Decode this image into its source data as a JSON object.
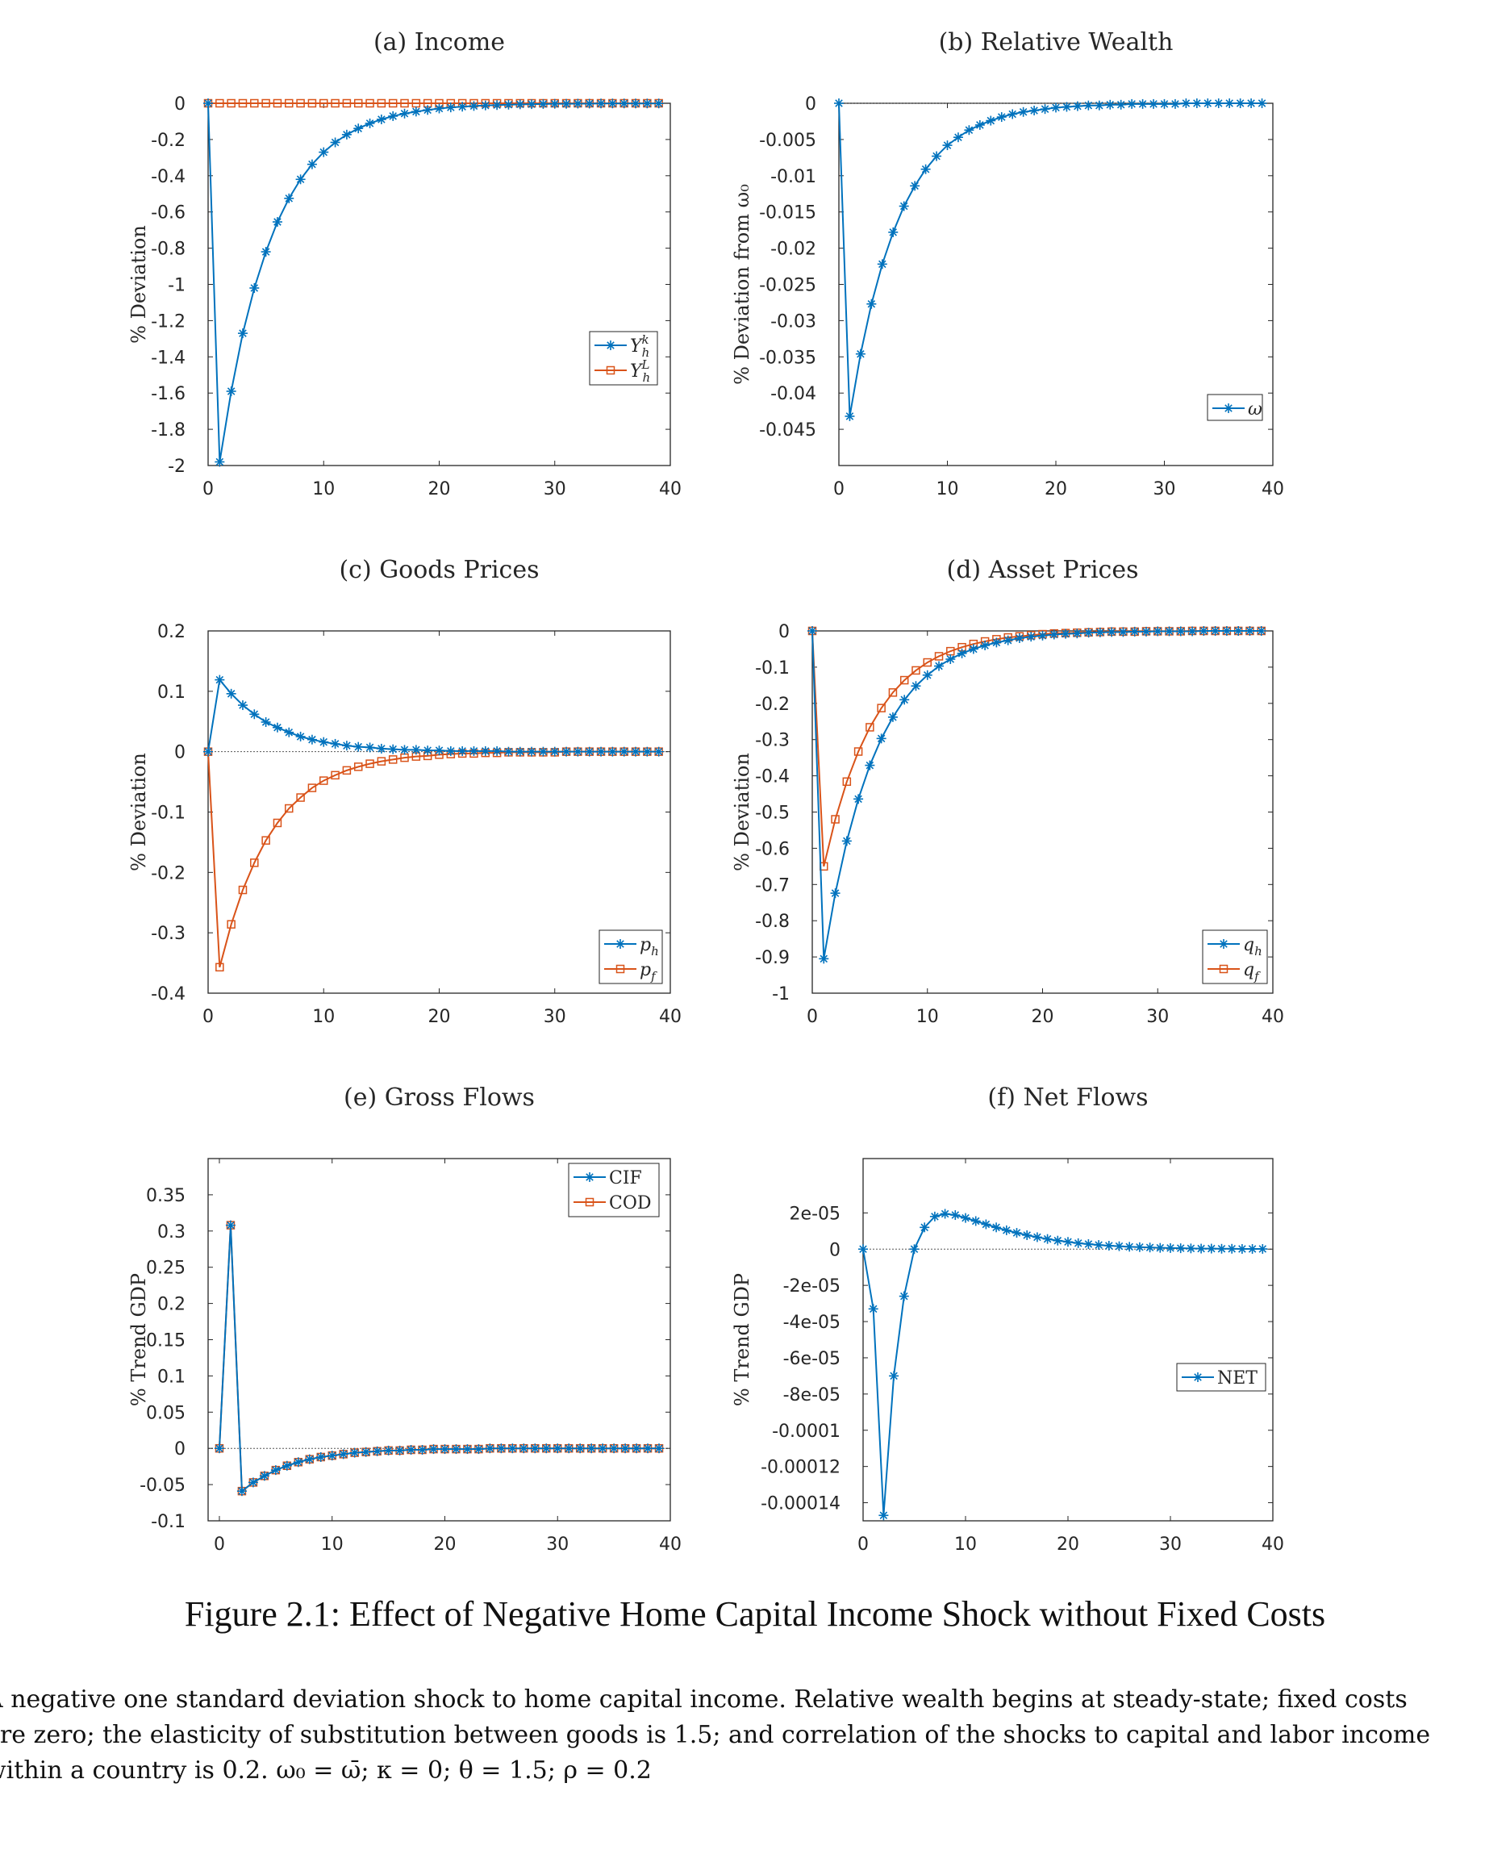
{
  "figure": {
    "caption": "Figure 2.1: Effect of Negative Home Capital Income Shock without Fixed Costs",
    "note": "A negative one standard deviation shock to home capital income. Relative wealth begins at steady-state; fixed costs\nare zero; the elasticity of substitution between goods is 1.5; and correlation of the shocks to capital and labor income\nwithin a country is 0.2. ω₀ = ω̄; κ = 0; θ = 1.5; ρ = 0.2"
  },
  "colors": {
    "blue": "#0072BD",
    "orange": "#D95319",
    "axis": "#262626"
  },
  "chart_data": [
    {
      "type": "line",
      "title": "(a) Income",
      "ylabel": "% Deviation",
      "xlim": [
        0,
        40
      ],
      "ylim": [
        -2,
        0
      ],
      "xticks": [
        0,
        10,
        20,
        30,
        40
      ],
      "yticks": [
        0,
        -0.2,
        -0.4,
        -0.6,
        -0.8,
        -1,
        -1.2,
        -1.4,
        -1.6,
        -1.8,
        -2
      ],
      "ytick_labels": [
        "0",
        "-0.2",
        "-0.4",
        "-0.6",
        "-0.8",
        "-1",
        "-1.2",
        "-1.4",
        "-1.6",
        "-1.8",
        "-2"
      ],
      "zero_line": false,
      "legend_position": "right, lower-middle",
      "series": [
        {
          "name": "Y_h^k",
          "marker": "star",
          "color": "#0072BD",
          "start": 0,
          "values": [
            0,
            -1.98,
            -1.59,
            -1.27,
            -1.02,
            -0.82,
            -0.655,
            -0.525,
            -0.42,
            -0.337,
            -0.27,
            -0.216,
            -0.173,
            -0.139,
            -0.111,
            -0.089,
            -0.071,
            -0.057,
            -0.046,
            -0.037,
            -0.029,
            -0.023,
            -0.019,
            -0.015,
            -0.012,
            -0.01,
            -0.008,
            -0.006,
            -0.005,
            -0.004,
            -0.003,
            -0.003,
            -0.002,
            -0.002,
            -0.001,
            -0.001,
            -0.001,
            -0.001,
            -0.001,
            -0.001
          ]
        },
        {
          "name": "Y_h^L",
          "marker": "square",
          "color": "#D95319",
          "start": 0,
          "values": [
            0,
            0,
            0,
            0,
            0,
            0,
            0,
            0,
            0,
            0,
            0,
            0,
            0,
            0,
            0,
            0,
            0,
            0,
            0,
            0,
            0,
            0,
            0,
            0,
            0,
            0,
            0,
            0,
            0,
            0,
            0,
            0,
            0,
            0,
            0,
            0,
            0,
            0,
            0,
            0
          ]
        }
      ]
    },
    {
      "type": "line",
      "title": "(b) Relative Wealth",
      "ylabel": "% Deviation from ω₀",
      "xlim": [
        0,
        40
      ],
      "ylim": [
        -0.05,
        0
      ],
      "xticks": [
        0,
        10,
        20,
        30,
        40
      ],
      "yticks": [
        0,
        -0.005,
        -0.01,
        -0.015,
        -0.02,
        -0.025,
        -0.03,
        -0.035,
        -0.04,
        -0.045
      ],
      "ytick_labels": [
        "0",
        "-0.005",
        "-0.01",
        "-0.015",
        "-0.02",
        "-0.025",
        "-0.03",
        "-0.035",
        "-0.04",
        "-0.045"
      ],
      "zero_line": true,
      "legend_position": "right, lower",
      "series": [
        {
          "name": "ω",
          "marker": "star",
          "color": "#0072BD",
          "start": 0,
          "values": [
            0,
            -0.0432,
            -0.0346,
            -0.0277,
            -0.0222,
            -0.0178,
            -0.0142,
            -0.0114,
            -0.0091,
            -0.0073,
            -0.0058,
            -0.0047,
            -0.0037,
            -0.003,
            -0.0024,
            -0.0019,
            -0.0015,
            -0.0012,
            -0.001,
            -0.0008,
            -0.0006,
            -0.0005,
            -0.0004,
            -0.0003,
            -0.0003,
            -0.0002,
            -0.0002,
            -0.0001,
            -0.0001,
            -0.0001,
            -0.0001,
            -0.0001,
            0,
            0,
            0,
            0,
            0,
            0,
            0,
            0
          ]
        }
      ]
    },
    {
      "type": "line",
      "title": "(c) Goods Prices",
      "ylabel": "% Deviation",
      "xlim": [
        0,
        40
      ],
      "ylim": [
        -0.4,
        0.2
      ],
      "xticks": [
        0,
        10,
        20,
        30,
        40
      ],
      "yticks": [
        0.2,
        0.1,
        0,
        -0.1,
        -0.2,
        -0.3,
        -0.4
      ],
      "ytick_labels": [
        "0.2",
        "0.1",
        "0",
        "-0.1",
        "-0.2",
        "-0.3",
        "-0.4"
      ],
      "zero_line": true,
      "legend_position": "bottom-right",
      "series": [
        {
          "name": "p_h",
          "marker": "star",
          "color": "#0072BD",
          "start": 0,
          "values": [
            0,
            0.119,
            0.096,
            0.077,
            0.062,
            0.049,
            0.04,
            0.032,
            0.025,
            0.02,
            0.016,
            0.013,
            0.01,
            0.008,
            0.007,
            0.005,
            0.004,
            0.003,
            0.003,
            0.002,
            0.002,
            0.001,
            0.001,
            0.001,
            0.001,
            0.001,
            0,
            0,
            0,
            0,
            0,
            0,
            0,
            0,
            0,
            0,
            0,
            0,
            0,
            0
          ]
        },
        {
          "name": "p_f",
          "marker": "square",
          "color": "#D95319",
          "start": 0,
          "values": [
            0,
            -0.357,
            -0.286,
            -0.229,
            -0.184,
            -0.147,
            -0.118,
            -0.094,
            -0.076,
            -0.06,
            -0.048,
            -0.039,
            -0.031,
            -0.025,
            -0.02,
            -0.016,
            -0.013,
            -0.01,
            -0.008,
            -0.007,
            -0.005,
            -0.004,
            -0.003,
            -0.003,
            -0.002,
            -0.002,
            -0.001,
            -0.001,
            -0.001,
            -0.001,
            -0.001,
            0,
            0,
            0,
            0,
            0,
            0,
            0,
            0,
            0
          ]
        }
      ]
    },
    {
      "type": "line",
      "title": "(d) Asset Prices",
      "ylabel": "% Deviation",
      "xlim": [
        0,
        40
      ],
      "ylim": [
        -1,
        0
      ],
      "xticks": [
        0,
        10,
        20,
        30,
        40
      ],
      "yticks": [
        0,
        -0.1,
        -0.2,
        -0.3,
        -0.4,
        -0.5,
        -0.6,
        -0.7,
        -0.8,
        -0.9,
        -1
      ],
      "ytick_labels": [
        "0",
        "-0.1",
        "-0.2",
        "-0.3",
        "-0.4",
        "-0.5",
        "-0.6",
        "-0.7",
        "-0.8",
        "-0.9",
        "-1"
      ],
      "zero_line": false,
      "legend_position": "bottom-right",
      "series": [
        {
          "name": "q_h",
          "marker": "star",
          "color": "#0072BD",
          "start": 0,
          "values": [
            0,
            -0.905,
            -0.724,
            -0.58,
            -0.464,
            -0.371,
            -0.297,
            -0.238,
            -0.19,
            -0.152,
            -0.122,
            -0.097,
            -0.078,
            -0.062,
            -0.05,
            -0.04,
            -0.032,
            -0.026,
            -0.02,
            -0.016,
            -0.013,
            -0.01,
            -0.008,
            -0.007,
            -0.005,
            -0.004,
            -0.003,
            -0.003,
            -0.002,
            -0.002,
            -0.001,
            -0.001,
            -0.001,
            -0.001,
            0,
            0,
            0,
            0,
            0,
            0
          ]
        },
        {
          "name": "q_f",
          "marker": "square",
          "color": "#D95319",
          "start": 0,
          "values": [
            0,
            -0.65,
            -0.52,
            -0.416,
            -0.333,
            -0.266,
            -0.213,
            -0.17,
            -0.136,
            -0.109,
            -0.087,
            -0.07,
            -0.056,
            -0.045,
            -0.036,
            -0.029,
            -0.023,
            -0.018,
            -0.015,
            -0.012,
            -0.009,
            -0.007,
            -0.006,
            -0.005,
            -0.004,
            -0.003,
            -0.002,
            -0.002,
            -0.002,
            -0.001,
            -0.001,
            -0.001,
            -0.001,
            0,
            0,
            0,
            0,
            0,
            0,
            0
          ]
        }
      ]
    },
    {
      "type": "line",
      "title": "(e) Gross Flows",
      "ylabel": "% Trend GDP",
      "xlim": [
        -1,
        40
      ],
      "ylim": [
        -0.1,
        0.4
      ],
      "xticks": [
        0,
        10,
        20,
        30,
        40
      ],
      "yticks": [
        0.35,
        0.3,
        0.25,
        0.2,
        0.15,
        0.1,
        0.05,
        0,
        -0.05,
        -0.1
      ],
      "ytick_labels": [
        "0.35",
        "0.3",
        "0.25",
        "0.2",
        "0.15",
        "0.1",
        "0.05",
        "0",
        "-0.05",
        "-0.1"
      ],
      "zero_line": true,
      "legend_position": "top-right",
      "series": [
        {
          "name": "CIF",
          "marker": "star",
          "color": "#0072BD",
          "start": 0,
          "values": [
            0,
            0.308,
            -0.059,
            -0.047,
            -0.038,
            -0.03,
            -0.024,
            -0.019,
            -0.015,
            -0.012,
            -0.01,
            -0.008,
            -0.006,
            -0.005,
            -0.004,
            -0.003,
            -0.003,
            -0.002,
            -0.002,
            -0.001,
            -0.001,
            -0.001,
            -0.001,
            -0.001,
            0,
            0,
            0,
            0,
            0,
            0,
            0,
            0,
            0,
            0,
            0,
            0,
            0,
            0,
            0,
            0
          ]
        },
        {
          "name": "COD",
          "marker": "square",
          "color": "#D95319",
          "start": 0,
          "values": [
            0,
            0.308,
            -0.059,
            -0.047,
            -0.038,
            -0.03,
            -0.024,
            -0.019,
            -0.015,
            -0.012,
            -0.01,
            -0.008,
            -0.006,
            -0.005,
            -0.004,
            -0.003,
            -0.003,
            -0.002,
            -0.002,
            -0.001,
            -0.001,
            -0.001,
            -0.001,
            -0.001,
            0,
            0,
            0,
            0,
            0,
            0,
            0,
            0,
            0,
            0,
            0,
            0,
            0,
            0,
            0,
            0
          ]
        }
      ]
    },
    {
      "type": "line",
      "title": "(f) Net Flows",
      "ylabel": "% Trend GDP",
      "xlim": [
        0,
        40
      ],
      "ylim": [
        -0.00015,
        5e-05
      ],
      "xticks": [
        0,
        10,
        20,
        30,
        40
      ],
      "yticks": [
        2e-05,
        0,
        -2e-05,
        -4e-05,
        -6e-05,
        -8e-05,
        -0.0001,
        -0.00012,
        -0.00014
      ],
      "ytick_labels": [
        "2e-05",
        "0",
        "-2e-05",
        "-4e-05",
        "-6e-05",
        "-8e-05",
        "-0.0001",
        "-0.00012",
        "-0.00014"
      ],
      "zero_line": true,
      "legend_position": "right, middle",
      "series": [
        {
          "name": "NET",
          "marker": "star",
          "color": "#0072BD",
          "start": 0,
          "values": [
            0,
            -3.3e-05,
            -0.000147,
            -7e-05,
            -2.6e-05,
            0,
            1.2e-05,
            1.8e-05,
            1.95e-05,
            1.88e-05,
            1.72e-05,
            1.55e-05,
            1.37e-05,
            1.2e-05,
            1.04e-05,
            9e-06,
            7.7e-06,
            6.6e-06,
            5.6e-06,
            4.7e-06,
            4e-06,
            3.3e-06,
            2.8e-06,
            2.3e-06,
            1.9e-06,
            1.6e-06,
            1.3e-06,
            1.1e-06,
            9e-07,
            7e-07,
            6e-07,
            5e-07,
            4e-07,
            3e-07,
            3e-07,
            2e-07,
            2e-07,
            1e-07,
            1e-07,
            1e-07
          ]
        }
      ]
    }
  ]
}
